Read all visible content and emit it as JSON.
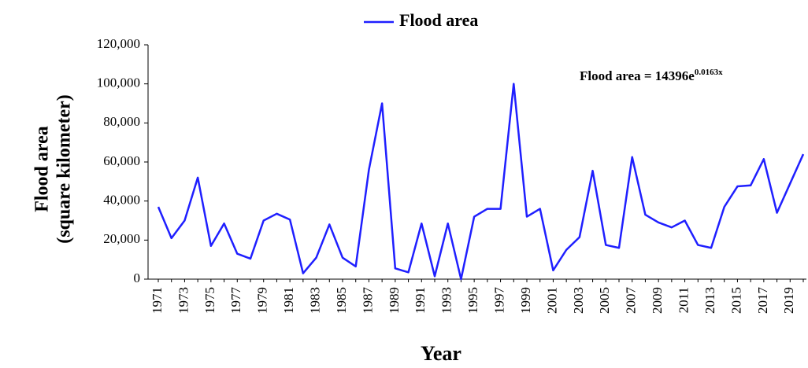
{
  "chart_data": {
    "type": "line",
    "ylabel": [
      "Flood area",
      "(square kilometer)"
    ],
    "xlabel": "Year",
    "annotation": {
      "text": "Flood area = 14396e",
      "superscript": "0.0163x"
    },
    "categories": [
      "1971",
      null,
      "1973",
      null,
      "1975",
      null,
      "1977",
      null,
      "1979",
      null,
      "1981",
      null,
      "1983",
      null,
      "1985",
      null,
      "1987",
      null,
      "1989",
      null,
      "1991",
      null,
      "1993",
      null,
      "1995",
      null,
      "1997",
      null,
      "1999",
      null,
      "2001",
      null,
      "2003",
      null,
      "2005",
      null,
      "2007",
      null,
      "2009",
      null,
      "2011",
      null,
      "2013",
      null,
      "2015",
      null,
      "2017",
      null,
      "2019",
      null
    ],
    "series": [
      {
        "name": "Flood area",
        "color": "#1f1fff",
        "values": [
          37000,
          21000,
          30000,
          52000,
          17000,
          28500,
          13000,
          10500,
          30000,
          33500,
          30500,
          3000,
          11000,
          28000,
          11000,
          6500,
          56000,
          90000,
          5500,
          3500,
          28500,
          1500,
          28500,
          0,
          32000,
          36000,
          36000,
          100000,
          32000,
          36000,
          4500,
          15000,
          21500,
          55500,
          17500,
          16000,
          62500,
          33000,
          29000,
          26500,
          30000,
          17500,
          16000,
          37000,
          47500,
          48000,
          61500,
          34000,
          49000,
          64000
        ]
      }
    ],
    "ylim": [
      0,
      120000
    ],
    "yticks": [
      0,
      {
        "value": 20000,
        "label": "20,000"
      },
      {
        "value": 40000,
        "label": "40,000"
      },
      {
        "value": 60000,
        "label": "60,000"
      },
      {
        "value": 80000,
        "label": "80,000"
      },
      {
        "value": 100000,
        "label": "100,000"
      },
      {
        "value": 120000,
        "label": "120,000"
      }
    ],
    "legend": "top"
  }
}
